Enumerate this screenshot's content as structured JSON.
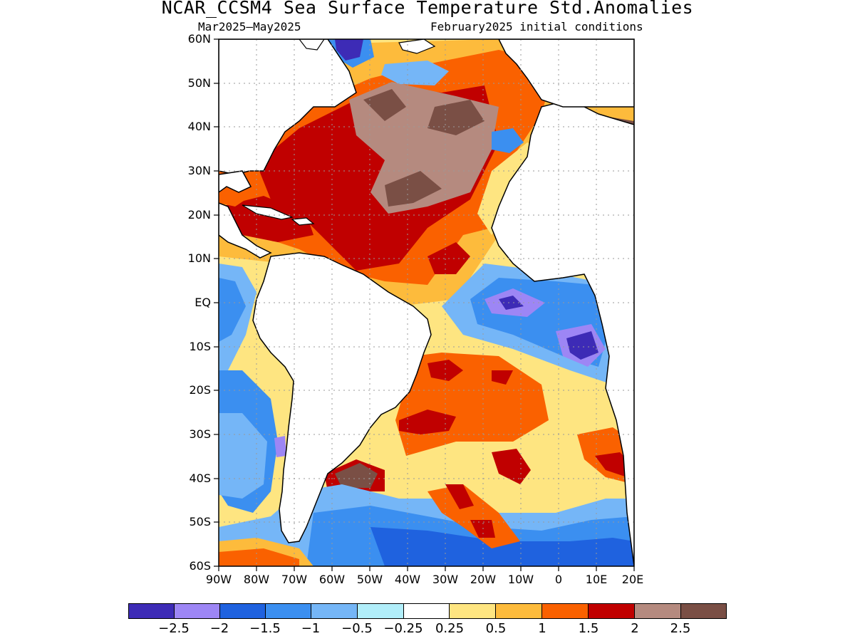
{
  "title": "NCAR_CCSM4 Sea Surface Temperature Std.Anomalies",
  "subtitle_left": "Mar2025—May2025",
  "subtitle_right": "February2025 initial conditions",
  "map": {
    "lon_range": [
      -90,
      20
    ],
    "lat_range": [
      -60,
      60
    ],
    "lat_ticks": [
      "60N",
      "50N",
      "40N",
      "30N",
      "20N",
      "10N",
      "EQ",
      "10S",
      "20S",
      "30S",
      "40S",
      "50S",
      "60S"
    ],
    "lon_ticks": [
      "90W",
      "80W",
      "70W",
      "60W",
      "50W",
      "40W",
      "30W",
      "20W",
      "10W",
      "0",
      "10E",
      "20E"
    ],
    "land_color": "#ffffff",
    "gridlines": "dotted"
  },
  "colorbar": {
    "colors": [
      "#3d2bb6",
      "#9d86f5",
      "#1f62df",
      "#3b8ff0",
      "#75b6f7",
      "#b1eefa",
      "#ffffff",
      "#fee581",
      "#fdbb3c",
      "#fa6100",
      "#c00000",
      "#b58a7f",
      "#7a4f45"
    ],
    "labels": [
      "−2.5",
      "−2",
      "−1.5",
      "−1",
      "−0.5",
      "−0.25",
      "0.25",
      "0.5",
      "1",
      "1.5",
      "2",
      "2.5"
    ]
  }
}
